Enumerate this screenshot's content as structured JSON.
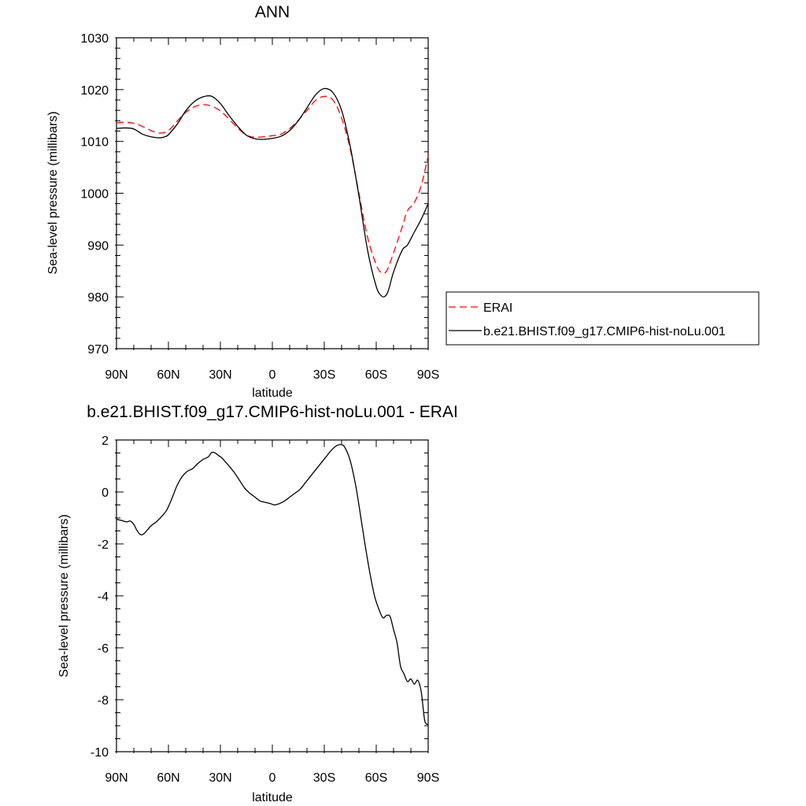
{
  "chart_data": [
    {
      "type": "line",
      "title": "ANN",
      "xlabel": "latitude",
      "ylabel": "Sea-level pressure (millibars)",
      "xlim": [
        90,
        -90
      ],
      "ylim": [
        970,
        1030
      ],
      "xticks": [
        {
          "value": 90,
          "label": "90N"
        },
        {
          "value": 60,
          "label": "60N"
        },
        {
          "value": 30,
          "label": "30N"
        },
        {
          "value": 0,
          "label": "0"
        },
        {
          "value": -30,
          "label": "30S"
        },
        {
          "value": -60,
          "label": "60S"
        },
        {
          "value": -90,
          "label": "90S"
        }
      ],
      "yticks": [
        {
          "value": 1030,
          "label": "1030"
        },
        {
          "value": 1020,
          "label": "1020"
        },
        {
          "value": 1010,
          "label": "1010"
        },
        {
          "value": 1000,
          "label": "1000"
        },
        {
          "value": 990,
          "label": "990"
        },
        {
          "value": 980,
          "label": "980"
        },
        {
          "value": 970,
          "label": "970"
        }
      ],
      "legend_position": "right",
      "series": [
        {
          "name": "ERAI",
          "color": "#ff0000",
          "dash": true,
          "x": [
            90,
            85,
            80,
            75,
            70,
            65,
            60,
            55,
            50,
            45,
            40,
            35,
            30,
            25,
            20,
            15,
            10,
            5,
            0,
            -5,
            -10,
            -15,
            -20,
            -25,
            -30,
            -35,
            -40,
            -45,
            -50,
            -55,
            -60,
            -63,
            -66,
            -70,
            -75,
            -78,
            -82,
            -86,
            -90
          ],
          "y": [
            1013.6,
            1013.7,
            1013.5,
            1012.9,
            1012.1,
            1011.6,
            1012.1,
            1013.9,
            1015.6,
            1016.7,
            1017.1,
            1016.8,
            1015.9,
            1014.3,
            1012.6,
            1011.2,
            1010.8,
            1010.9,
            1011.1,
            1011.4,
            1012.5,
            1014.1,
            1016.0,
            1017.9,
            1018.7,
            1018.0,
            1014.5,
            1008.5,
            1000.0,
            991.5,
            986.2,
            984.7,
            985.0,
            988.5,
            993.5,
            996.6,
            998.2,
            1001.5,
            1007.2
          ]
        },
        {
          "name": "b.e21.BHIST.f09_g17.CMIP6-hist-noLu.001",
          "color": "#000000",
          "dash": false,
          "x": [
            90,
            85,
            80,
            75,
            70,
            65,
            62,
            60,
            55,
            50,
            45,
            40,
            35,
            30,
            25,
            20,
            15,
            10,
            5,
            0,
            -5,
            -10,
            -15,
            -20,
            -25,
            -30,
            -35,
            -40,
            -45,
            -50,
            -55,
            -60,
            -63,
            -65,
            -67,
            -70,
            -75,
            -78,
            -82,
            -86,
            -90
          ],
          "y": [
            1012.5,
            1012.6,
            1012.4,
            1011.4,
            1010.9,
            1010.7,
            1010.9,
            1011.3,
            1013.3,
            1015.9,
            1017.7,
            1018.6,
            1018.7,
            1017.3,
            1015.0,
            1012.9,
            1011.2,
            1010.5,
            1010.4,
            1010.6,
            1011.0,
            1012.1,
            1014.0,
            1016.5,
            1019.0,
            1020.2,
            1019.4,
            1016.0,
            1009.0,
            999.5,
            989.0,
            982.0,
            980.2,
            980.1,
            981.2,
            984.8,
            989.0,
            990.0,
            992.5,
            995.0,
            998.0
          ]
        }
      ]
    },
    {
      "type": "line",
      "title": "b.e21.BHIST.f09_g17.CMIP6-hist-noLu.001 - ERAI",
      "xlabel": "latitude",
      "ylabel": "Sea-level pressure (millibars)",
      "xlim": [
        90,
        -90
      ],
      "ylim": [
        -10,
        2
      ],
      "xticks": [
        {
          "value": 90,
          "label": "90N"
        },
        {
          "value": 60,
          "label": "60N"
        },
        {
          "value": 30,
          "label": "30N"
        },
        {
          "value": 0,
          "label": "0"
        },
        {
          "value": -30,
          "label": "30S"
        },
        {
          "value": -60,
          "label": "60S"
        },
        {
          "value": -90,
          "label": "90S"
        }
      ],
      "yticks": [
        {
          "value": 2,
          "label": "2"
        },
        {
          "value": 0,
          "label": "0"
        },
        {
          "value": -2,
          "label": "-2"
        },
        {
          "value": -4,
          "label": "-4"
        },
        {
          "value": -6,
          "label": "-6"
        },
        {
          "value": -8,
          "label": "-8"
        },
        {
          "value": -10,
          "label": "-10"
        }
      ],
      "series": [
        {
          "color": "#000000",
          "dash": false,
          "x": [
            90,
            87,
            84,
            82,
            80,
            78,
            76,
            74,
            72,
            70,
            67,
            64,
            61,
            58,
            55,
            52,
            49,
            46,
            43,
            40,
            37,
            35,
            33,
            31,
            29,
            27,
            25,
            22,
            19,
            16,
            13,
            10,
            7,
            4,
            1,
            -1,
            -4,
            -7,
            -10,
            -13,
            -16,
            -19,
            -22,
            -25,
            -28,
            -31,
            -34,
            -37,
            -40,
            -42,
            -45,
            -48,
            -50,
            -53,
            -56,
            -59,
            -62,
            -64,
            -66,
            -68,
            -70,
            -72,
            -74,
            -76,
            -78,
            -80,
            -82,
            -84,
            -86,
            -88,
            -90
          ],
          "y": [
            -1.05,
            -1.1,
            -1.15,
            -1.12,
            -1.25,
            -1.5,
            -1.65,
            -1.6,
            -1.45,
            -1.3,
            -1.15,
            -0.95,
            -0.7,
            -0.25,
            0.25,
            0.6,
            0.8,
            0.9,
            1.1,
            1.25,
            1.35,
            1.52,
            1.5,
            1.4,
            1.3,
            1.15,
            1.0,
            0.75,
            0.45,
            0.15,
            -0.05,
            -0.2,
            -0.35,
            -0.4,
            -0.45,
            -0.5,
            -0.45,
            -0.35,
            -0.2,
            -0.05,
            0.1,
            0.35,
            0.6,
            0.85,
            1.1,
            1.35,
            1.6,
            1.78,
            1.82,
            1.7,
            1.2,
            0.3,
            -0.5,
            -1.8,
            -3.0,
            -4.0,
            -4.6,
            -4.85,
            -4.75,
            -4.8,
            -5.3,
            -5.8,
            -6.7,
            -7.0,
            -7.3,
            -7.2,
            -7.4,
            -7.25,
            -7.7,
            -8.8,
            -8.95
          ]
        }
      ]
    }
  ]
}
